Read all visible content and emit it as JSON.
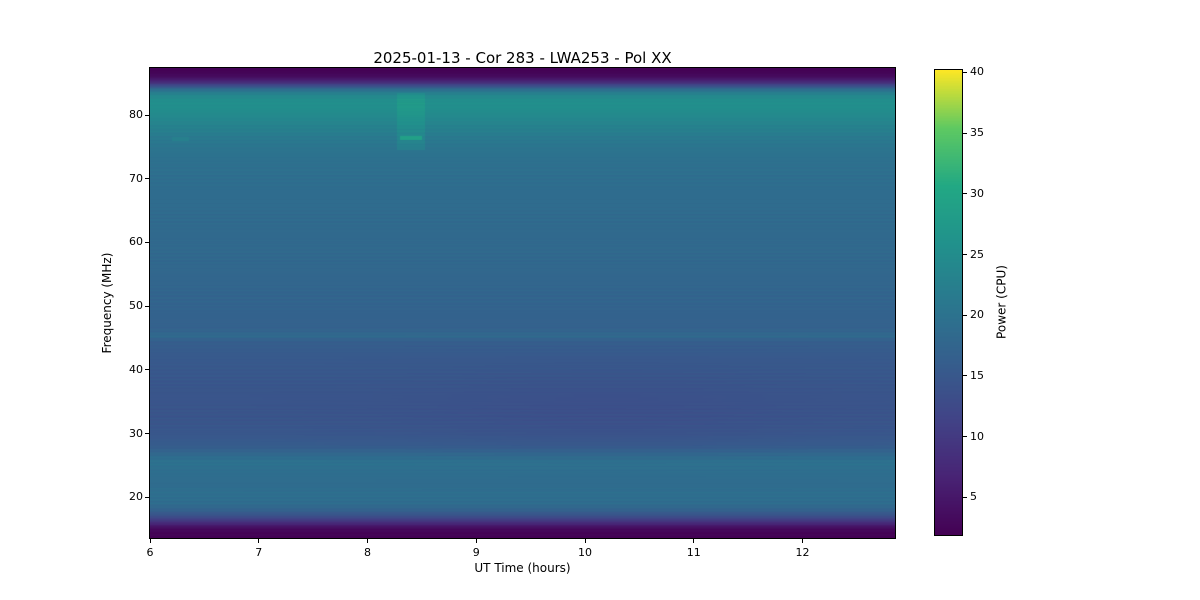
{
  "chart_data": {
    "type": "heatmap",
    "title": "2025-01-13 - Cor 283 - LWA253 - Pol XX",
    "xlabel": "UT Time (hours)",
    "ylabel": "Frequency (MHz)",
    "x_range": [
      6.0,
      12.85
    ],
    "y_range": [
      13.6,
      87.4
    ],
    "x_ticks": [
      6,
      7,
      8,
      9,
      10,
      11,
      12
    ],
    "y_ticks": [
      20,
      30,
      40,
      50,
      60,
      70,
      80
    ],
    "grid": false,
    "colormap": "viridis",
    "colorbar": {
      "label": "Power (CPU)",
      "ticks": [
        5,
        10,
        15,
        20,
        25,
        30,
        35,
        40
      ],
      "vmin": 1.9,
      "vmax": 40.2,
      "position": "right"
    },
    "frequency_power_profile": [
      [
        13.6,
        2.0
      ],
      [
        14.4,
        2.1
      ],
      [
        15.2,
        3.5
      ],
      [
        16.0,
        8.0
      ],
      [
        17.0,
        13.5
      ],
      [
        18.0,
        17.0
      ],
      [
        19.0,
        18.8
      ],
      [
        20.5,
        19.3
      ],
      [
        22.0,
        18.8
      ],
      [
        24.0,
        19.2
      ],
      [
        25.5,
        19.8
      ],
      [
        26.5,
        18.5
      ],
      [
        28.0,
        15.8
      ],
      [
        30.0,
        14.8
      ],
      [
        33.0,
        14.4
      ],
      [
        36.0,
        14.5
      ],
      [
        39.0,
        14.9
      ],
      [
        42.0,
        15.3
      ],
      [
        44.5,
        16.2
      ],
      [
        45.3,
        18.3
      ],
      [
        46.5,
        16.8
      ],
      [
        49.0,
        17.0
      ],
      [
        52.0,
        17.4
      ],
      [
        55.0,
        17.8
      ],
      [
        58.0,
        18.1
      ],
      [
        62.0,
        18.3
      ],
      [
        66.0,
        18.7
      ],
      [
        70.0,
        19.1
      ],
      [
        73.0,
        19.7
      ],
      [
        75.0,
        20.4
      ],
      [
        76.3,
        21.3
      ],
      [
        77.5,
        22.3
      ],
      [
        79.0,
        23.6
      ],
      [
        80.2,
        24.6
      ],
      [
        81.2,
        25.4
      ],
      [
        82.4,
        25.3
      ],
      [
        83.2,
        23.5
      ],
      [
        84.0,
        19.5
      ],
      [
        84.6,
        13.0
      ],
      [
        85.2,
        7.5
      ],
      [
        86.0,
        3.5
      ],
      [
        86.8,
        2.2
      ],
      [
        87.4,
        2.0
      ]
    ],
    "time_variation": {
      "note": "slightly dimmer band 28-42 MHz near mid-interval",
      "center_hour": 10.2,
      "sigma_hours": 1.7,
      "freq_center": 33,
      "freq_sigma": 7,
      "amplitude": 0.9
    },
    "features": [
      {
        "t": [
          8.27,
          8.53
        ],
        "f": [
          74.5,
          83.5
        ],
        "delta_power": 2.2,
        "note": "brighter greenish patch near 8.4 h between 75-83 MHz"
      },
      {
        "t": [
          8.3,
          8.5
        ],
        "f": [
          76.15,
          76.7
        ],
        "power": 29,
        "note": "bright narrow emission line at ~76.4 MHz near 8.4 h"
      },
      {
        "t": [
          6.2,
          6.36
        ],
        "f": [
          76.0,
          76.6
        ],
        "power": 22.5,
        "note": "faint bright speck at ~76.3 MHz near 6.3 h"
      }
    ]
  }
}
